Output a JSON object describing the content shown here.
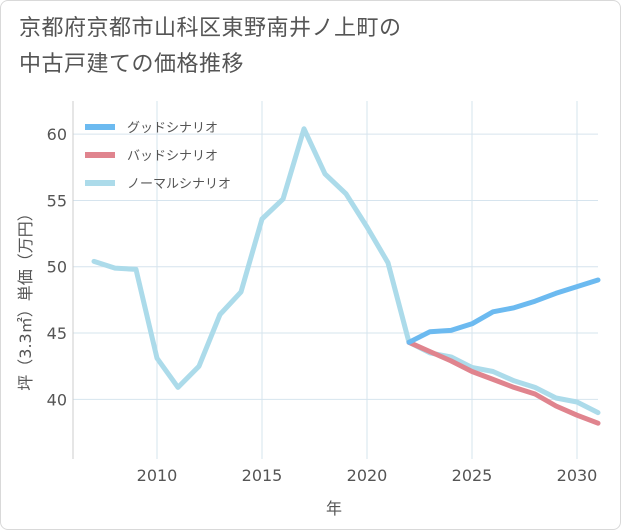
{
  "chart_data": {
    "type": "line",
    "title": "京都府京都市山科区東野南井ノ上町の中古戸建ての価格推移",
    "title_lines": [
      "京都府京都市山科区東野南井ノ上町の",
      "中古戸建ての価格推移"
    ],
    "xlabel": "年",
    "ylabel": "坪（3.3㎡）単価（万円）",
    "xlim": [
      2006,
      2031
    ],
    "ylim": [
      35.5,
      62.5
    ],
    "xticks": [
      2010,
      2015,
      2020,
      2025,
      2030
    ],
    "yticks": [
      40,
      45,
      50,
      55,
      60
    ],
    "grid": true,
    "legend_position": "top-left",
    "series": [
      {
        "name": "グッドシナリオ",
        "color": "#6cbaf0",
        "x": [
          2022,
          2023,
          2024,
          2025,
          2026,
          2027,
          2028,
          2029,
          2030,
          2031
        ],
        "values": [
          44.3,
          45.1,
          45.2,
          45.7,
          46.6,
          46.9,
          47.4,
          48.0,
          48.5,
          49.0
        ]
      },
      {
        "name": "バッドシナリオ",
        "color": "#e0848e",
        "x": [
          2022,
          2023,
          2024,
          2025,
          2026,
          2027,
          2028,
          2029,
          2030,
          2031
        ],
        "values": [
          44.3,
          43.6,
          42.9,
          42.1,
          41.5,
          40.9,
          40.4,
          39.5,
          38.8,
          38.2
        ]
      },
      {
        "name": "ノーマルシナリオ",
        "color": "#acdbea",
        "x": [
          2007,
          2008,
          2009,
          2010,
          2011,
          2012,
          2013,
          2014,
          2015,
          2016,
          2017,
          2018,
          2019,
          2020,
          2021,
          2022,
          2023,
          2024,
          2025,
          2026,
          2027,
          2028,
          2029,
          2030,
          2031
        ],
        "values": [
          50.4,
          49.9,
          49.8,
          43.1,
          40.9,
          42.5,
          46.4,
          48.1,
          53.6,
          55.1,
          60.4,
          57.0,
          55.5,
          53.0,
          50.3,
          44.3,
          43.5,
          43.2,
          42.4,
          42.1,
          41.4,
          40.9,
          40.1,
          39.8,
          39.0
        ]
      }
    ]
  }
}
